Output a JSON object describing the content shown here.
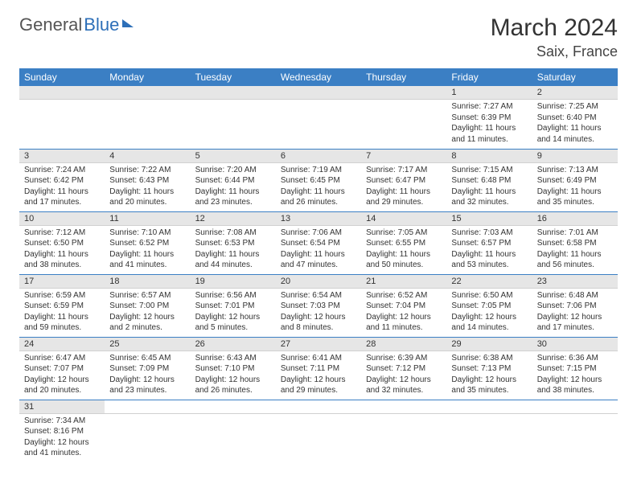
{
  "logo": {
    "part1": "General",
    "part2": "Blue"
  },
  "title": "March 2024",
  "location": "Saix, France",
  "colors": {
    "header_bg": "#3b7fc4",
    "header_text": "#ffffff",
    "daynum_bg": "#e6e6e6",
    "row_border": "#3b7fc4",
    "logo_blue": "#2d6fb8"
  },
  "weekdays": [
    "Sunday",
    "Monday",
    "Tuesday",
    "Wednesday",
    "Thursday",
    "Friday",
    "Saturday"
  ],
  "weeks": [
    [
      {
        "blank": true
      },
      {
        "blank": true
      },
      {
        "blank": true
      },
      {
        "blank": true
      },
      {
        "blank": true
      },
      {
        "num": "1",
        "sunrise": "Sunrise: 7:27 AM",
        "sunset": "Sunset: 6:39 PM",
        "daylight": "Daylight: 11 hours and 11 minutes."
      },
      {
        "num": "2",
        "sunrise": "Sunrise: 7:25 AM",
        "sunset": "Sunset: 6:40 PM",
        "daylight": "Daylight: 11 hours and 14 minutes."
      }
    ],
    [
      {
        "num": "3",
        "sunrise": "Sunrise: 7:24 AM",
        "sunset": "Sunset: 6:42 PM",
        "daylight": "Daylight: 11 hours and 17 minutes."
      },
      {
        "num": "4",
        "sunrise": "Sunrise: 7:22 AM",
        "sunset": "Sunset: 6:43 PM",
        "daylight": "Daylight: 11 hours and 20 minutes."
      },
      {
        "num": "5",
        "sunrise": "Sunrise: 7:20 AM",
        "sunset": "Sunset: 6:44 PM",
        "daylight": "Daylight: 11 hours and 23 minutes."
      },
      {
        "num": "6",
        "sunrise": "Sunrise: 7:19 AM",
        "sunset": "Sunset: 6:45 PM",
        "daylight": "Daylight: 11 hours and 26 minutes."
      },
      {
        "num": "7",
        "sunrise": "Sunrise: 7:17 AM",
        "sunset": "Sunset: 6:47 PM",
        "daylight": "Daylight: 11 hours and 29 minutes."
      },
      {
        "num": "8",
        "sunrise": "Sunrise: 7:15 AM",
        "sunset": "Sunset: 6:48 PM",
        "daylight": "Daylight: 11 hours and 32 minutes."
      },
      {
        "num": "9",
        "sunrise": "Sunrise: 7:13 AM",
        "sunset": "Sunset: 6:49 PM",
        "daylight": "Daylight: 11 hours and 35 minutes."
      }
    ],
    [
      {
        "num": "10",
        "sunrise": "Sunrise: 7:12 AM",
        "sunset": "Sunset: 6:50 PM",
        "daylight": "Daylight: 11 hours and 38 minutes."
      },
      {
        "num": "11",
        "sunrise": "Sunrise: 7:10 AM",
        "sunset": "Sunset: 6:52 PM",
        "daylight": "Daylight: 11 hours and 41 minutes."
      },
      {
        "num": "12",
        "sunrise": "Sunrise: 7:08 AM",
        "sunset": "Sunset: 6:53 PM",
        "daylight": "Daylight: 11 hours and 44 minutes."
      },
      {
        "num": "13",
        "sunrise": "Sunrise: 7:06 AM",
        "sunset": "Sunset: 6:54 PM",
        "daylight": "Daylight: 11 hours and 47 minutes."
      },
      {
        "num": "14",
        "sunrise": "Sunrise: 7:05 AM",
        "sunset": "Sunset: 6:55 PM",
        "daylight": "Daylight: 11 hours and 50 minutes."
      },
      {
        "num": "15",
        "sunrise": "Sunrise: 7:03 AM",
        "sunset": "Sunset: 6:57 PM",
        "daylight": "Daylight: 11 hours and 53 minutes."
      },
      {
        "num": "16",
        "sunrise": "Sunrise: 7:01 AM",
        "sunset": "Sunset: 6:58 PM",
        "daylight": "Daylight: 11 hours and 56 minutes."
      }
    ],
    [
      {
        "num": "17",
        "sunrise": "Sunrise: 6:59 AM",
        "sunset": "Sunset: 6:59 PM",
        "daylight": "Daylight: 11 hours and 59 minutes."
      },
      {
        "num": "18",
        "sunrise": "Sunrise: 6:57 AM",
        "sunset": "Sunset: 7:00 PM",
        "daylight": "Daylight: 12 hours and 2 minutes."
      },
      {
        "num": "19",
        "sunrise": "Sunrise: 6:56 AM",
        "sunset": "Sunset: 7:01 PM",
        "daylight": "Daylight: 12 hours and 5 minutes."
      },
      {
        "num": "20",
        "sunrise": "Sunrise: 6:54 AM",
        "sunset": "Sunset: 7:03 PM",
        "daylight": "Daylight: 12 hours and 8 minutes."
      },
      {
        "num": "21",
        "sunrise": "Sunrise: 6:52 AM",
        "sunset": "Sunset: 7:04 PM",
        "daylight": "Daylight: 12 hours and 11 minutes."
      },
      {
        "num": "22",
        "sunrise": "Sunrise: 6:50 AM",
        "sunset": "Sunset: 7:05 PM",
        "daylight": "Daylight: 12 hours and 14 minutes."
      },
      {
        "num": "23",
        "sunrise": "Sunrise: 6:48 AM",
        "sunset": "Sunset: 7:06 PM",
        "daylight": "Daylight: 12 hours and 17 minutes."
      }
    ],
    [
      {
        "num": "24",
        "sunrise": "Sunrise: 6:47 AM",
        "sunset": "Sunset: 7:07 PM",
        "daylight": "Daylight: 12 hours and 20 minutes."
      },
      {
        "num": "25",
        "sunrise": "Sunrise: 6:45 AM",
        "sunset": "Sunset: 7:09 PM",
        "daylight": "Daylight: 12 hours and 23 minutes."
      },
      {
        "num": "26",
        "sunrise": "Sunrise: 6:43 AM",
        "sunset": "Sunset: 7:10 PM",
        "daylight": "Daylight: 12 hours and 26 minutes."
      },
      {
        "num": "27",
        "sunrise": "Sunrise: 6:41 AM",
        "sunset": "Sunset: 7:11 PM",
        "daylight": "Daylight: 12 hours and 29 minutes."
      },
      {
        "num": "28",
        "sunrise": "Sunrise: 6:39 AM",
        "sunset": "Sunset: 7:12 PM",
        "daylight": "Daylight: 12 hours and 32 minutes."
      },
      {
        "num": "29",
        "sunrise": "Sunrise: 6:38 AM",
        "sunset": "Sunset: 7:13 PM",
        "daylight": "Daylight: 12 hours and 35 minutes."
      },
      {
        "num": "30",
        "sunrise": "Sunrise: 6:36 AM",
        "sunset": "Sunset: 7:15 PM",
        "daylight": "Daylight: 12 hours and 38 minutes."
      }
    ],
    [
      {
        "num": "31",
        "sunrise": "Sunrise: 7:34 AM",
        "sunset": "Sunset: 8:16 PM",
        "daylight": "Daylight: 12 hours and 41 minutes."
      },
      {
        "blank": true
      },
      {
        "blank": true
      },
      {
        "blank": true
      },
      {
        "blank": true
      },
      {
        "blank": true
      },
      {
        "blank": true
      }
    ]
  ]
}
